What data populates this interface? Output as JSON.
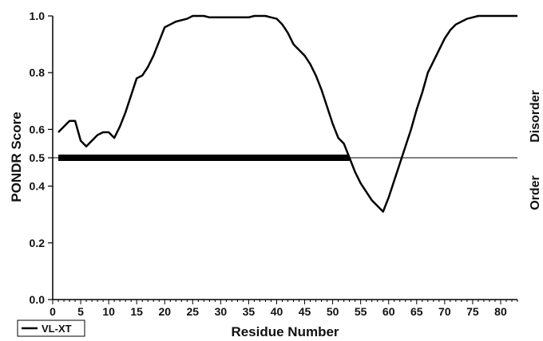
{
  "chart_data": {
    "type": "line",
    "title": "",
    "xlabel": "Residue Number",
    "ylabel": "PONDR Score",
    "xlim": [
      0,
      83
    ],
    "ylim": [
      0.0,
      1.0
    ],
    "x_ticks": [
      0,
      5,
      10,
      15,
      20,
      25,
      30,
      35,
      40,
      45,
      50,
      55,
      60,
      65,
      70,
      75,
      80
    ],
    "y_ticks": [
      0.0,
      0.2,
      0.4,
      0.5,
      0.6,
      0.8,
      1.0
    ],
    "y_tick_labels": [
      "0.0",
      "0.2",
      "0.4",
      "0.5",
      "0.6",
      "0.8",
      "1.0"
    ],
    "threshold": 0.5,
    "region_labels": {
      "above": "Disorder",
      "below": "Order"
    },
    "disordered_bar": {
      "x_start": 1,
      "x_end": 53,
      "y": 0.5
    },
    "grid": false,
    "legend_position": "bottom-left",
    "series": [
      {
        "name": "VL-XT",
        "color": "#000000",
        "x": [
          1,
          2,
          3,
          4,
          5,
          6,
          7,
          8,
          9,
          10,
          11,
          12,
          13,
          14,
          15,
          16,
          17,
          18,
          19,
          20,
          21,
          22,
          23,
          24,
          25,
          26,
          27,
          28,
          29,
          30,
          31,
          32,
          33,
          34,
          35,
          36,
          37,
          38,
          39,
          40,
          41,
          42,
          43,
          44,
          45,
          46,
          47,
          48,
          49,
          50,
          51,
          52,
          53,
          54,
          55,
          56,
          57,
          58,
          59,
          60,
          61,
          62,
          63,
          64,
          65,
          66,
          67,
          68,
          69,
          70,
          71,
          72,
          73,
          74,
          75,
          76,
          77,
          78,
          79,
          80,
          81,
          82,
          83
        ],
        "values": [
          0.59,
          0.61,
          0.63,
          0.63,
          0.56,
          0.54,
          0.56,
          0.58,
          0.59,
          0.59,
          0.57,
          0.61,
          0.66,
          0.72,
          0.78,
          0.79,
          0.82,
          0.86,
          0.91,
          0.96,
          0.97,
          0.98,
          0.985,
          0.99,
          1.0,
          1.0,
          1.0,
          0.995,
          0.995,
          0.995,
          0.995,
          0.995,
          0.995,
          0.995,
          0.995,
          1.0,
          1.0,
          1.0,
          0.995,
          0.99,
          0.97,
          0.94,
          0.9,
          0.88,
          0.86,
          0.83,
          0.79,
          0.74,
          0.68,
          0.62,
          0.57,
          0.55,
          0.5,
          0.45,
          0.41,
          0.38,
          0.35,
          0.33,
          0.31,
          0.36,
          0.42,
          0.48,
          0.54,
          0.6,
          0.67,
          0.73,
          0.8,
          0.84,
          0.88,
          0.92,
          0.95,
          0.97,
          0.98,
          0.99,
          0.995,
          1.0,
          1.0,
          1.0,
          1.0,
          1.0,
          1.0,
          1.0,
          1.0
        ]
      }
    ]
  }
}
